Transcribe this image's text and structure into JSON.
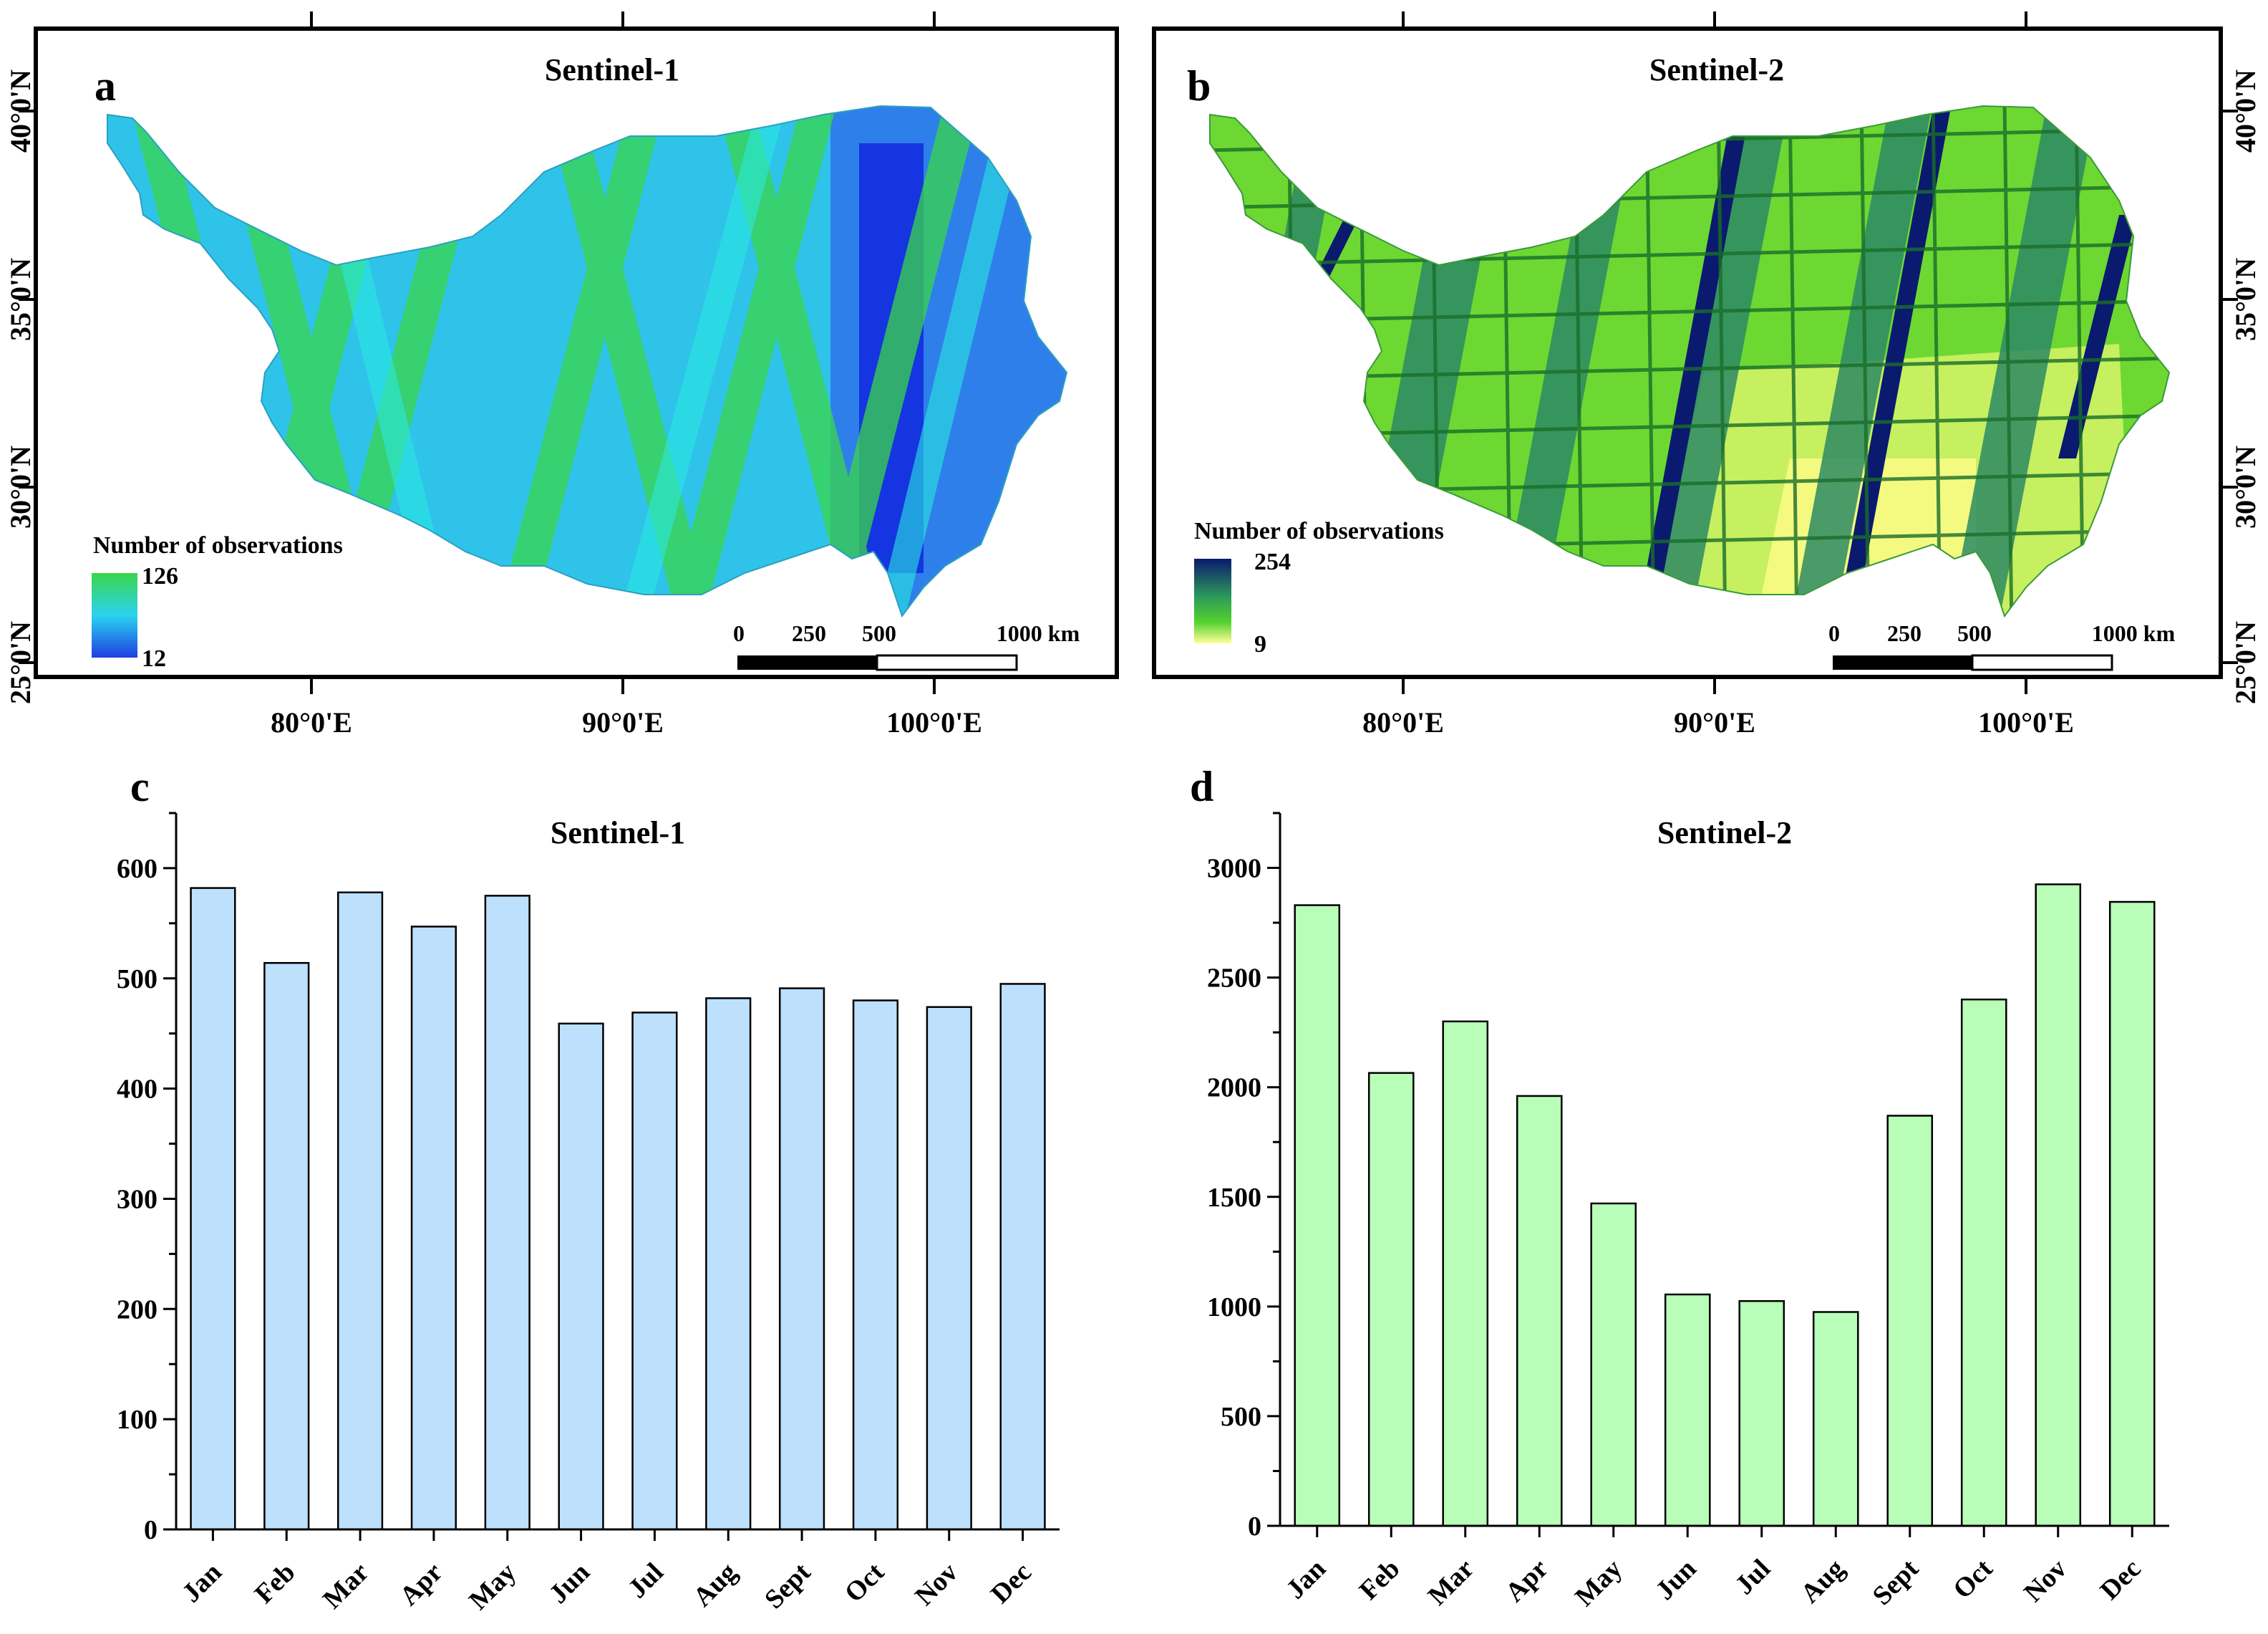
{
  "panels": {
    "a": {
      "letter": "a",
      "title": "Sentinel-1"
    },
    "b": {
      "letter": "b",
      "title": "Sentinel-2"
    },
    "c": {
      "letter": "c"
    },
    "d": {
      "letter": "d"
    }
  },
  "maps": {
    "lon_labels": [
      "80°0'E",
      "90°0'E",
      "100°0'E"
    ],
    "lat_labels": [
      "40°0'N",
      "35°0'N",
      "30°0'N",
      "25°0'N"
    ],
    "scale_bar": {
      "labels": [
        "0",
        "250",
        "500",
        "1000 km"
      ]
    },
    "legend_a": {
      "title": "Number of observations",
      "max": "126",
      "min": "12"
    },
    "legend_b": {
      "title": "Number of observations",
      "max": "254",
      "min": "9"
    }
  },
  "colors": {
    "s1_bar": "#bde0fd",
    "s2_bar": "#b8fdb8",
    "s1_high": "#3ad64a",
    "s1_mid": "#2ad4f0",
    "s1_low": "#1f3fe0",
    "s2_high": "#0a1a6e",
    "s2_mid": "#55d12e",
    "s2_low": "#ffff9a"
  },
  "chart_data": [
    {
      "type": "bar",
      "title": "Sentinel-1",
      "categories": [
        "Jan",
        "Feb",
        "Mar",
        "Apr",
        "May",
        "Jun",
        "Jul",
        "Aug",
        "Sept",
        "Oct",
        "Nov",
        "Dec"
      ],
      "values": [
        582,
        514,
        578,
        547,
        575,
        459,
        469,
        482,
        491,
        480,
        474,
        495
      ],
      "xlabel": "",
      "ylabel": "",
      "ylim": [
        0,
        650
      ],
      "yticks": [
        0,
        100,
        200,
        300,
        400,
        500,
        600
      ]
    },
    {
      "type": "bar",
      "title": "Sentinel-2",
      "categories": [
        "Jan",
        "Feb",
        "Mar",
        "Apr",
        "May",
        "Jun",
        "Jul",
        "Aug",
        "Sept",
        "Oct",
        "Nov",
        "Dec"
      ],
      "values": [
        2830,
        2065,
        2300,
        1960,
        1470,
        1055,
        1025,
        975,
        1870,
        2400,
        2925,
        2845
      ],
      "xlabel": "",
      "ylabel": "",
      "ylim": [
        0,
        3250
      ],
      "yticks": [
        0,
        500,
        1000,
        1500,
        2000,
        2500,
        3000
      ]
    }
  ]
}
